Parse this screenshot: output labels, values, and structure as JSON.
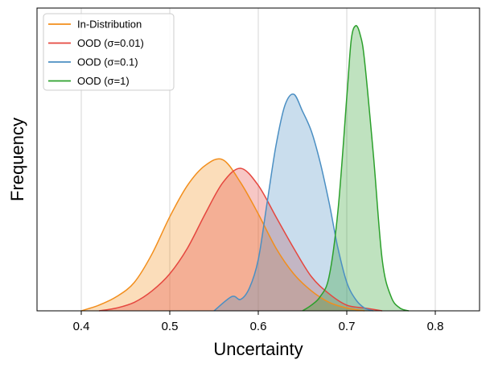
{
  "chart_data": {
    "type": "area",
    "xlabel": "Uncertainty",
    "ylabel": "Frequency",
    "xlim": [
      0.35,
      0.85
    ],
    "ylim": [
      0,
      1
    ],
    "xticks": [
      "0.4",
      "0.5",
      "0.6",
      "0.7",
      "0.8"
    ],
    "grid": "vertical",
    "legend_position": "top-left",
    "series": [
      {
        "name": "In-Distribution",
        "color": "#f28e1c",
        "x": [
          0.4,
          0.42,
          0.44,
          0.46,
          0.48,
          0.5,
          0.52,
          0.54,
          0.56,
          0.58,
          0.6,
          0.62,
          0.64,
          0.66,
          0.68,
          0.7,
          0.72
        ],
        "y": [
          0.0,
          0.02,
          0.05,
          0.1,
          0.2,
          0.33,
          0.44,
          0.51,
          0.53,
          0.45,
          0.34,
          0.22,
          0.13,
          0.07,
          0.03,
          0.01,
          0.0
        ]
      },
      {
        "name": "OOD (σ=0.01)",
        "color": "#e5473f",
        "x": [
          0.42,
          0.44,
          0.46,
          0.48,
          0.5,
          0.52,
          0.54,
          0.56,
          0.58,
          0.6,
          0.62,
          0.64,
          0.66,
          0.68,
          0.7,
          0.72,
          0.74
        ],
        "y": [
          0.0,
          0.01,
          0.03,
          0.07,
          0.13,
          0.22,
          0.34,
          0.45,
          0.5,
          0.44,
          0.33,
          0.22,
          0.12,
          0.06,
          0.02,
          0.01,
          0.0
        ]
      },
      {
        "name": "OOD (σ=0.1)",
        "color": "#4b8fc3",
        "x": [
          0.55,
          0.57,
          0.58,
          0.59,
          0.6,
          0.61,
          0.62,
          0.63,
          0.64,
          0.65,
          0.66,
          0.67,
          0.68,
          0.69,
          0.7,
          0.71,
          0.72,
          0.73
        ],
        "y": [
          0.0,
          0.05,
          0.04,
          0.08,
          0.18,
          0.38,
          0.58,
          0.72,
          0.76,
          0.7,
          0.63,
          0.52,
          0.38,
          0.22,
          0.1,
          0.04,
          0.01,
          0.0
        ]
      },
      {
        "name": "OOD (σ=1)",
        "color": "#2ca02c",
        "x": [
          0.65,
          0.66,
          0.67,
          0.68,
          0.69,
          0.7,
          0.705,
          0.71,
          0.715,
          0.72,
          0.73,
          0.74,
          0.75,
          0.76,
          0.77
        ],
        "y": [
          0.0,
          0.02,
          0.05,
          0.12,
          0.35,
          0.75,
          0.95,
          1.0,
          0.97,
          0.88,
          0.55,
          0.18,
          0.05,
          0.01,
          0.0
        ]
      }
    ]
  }
}
